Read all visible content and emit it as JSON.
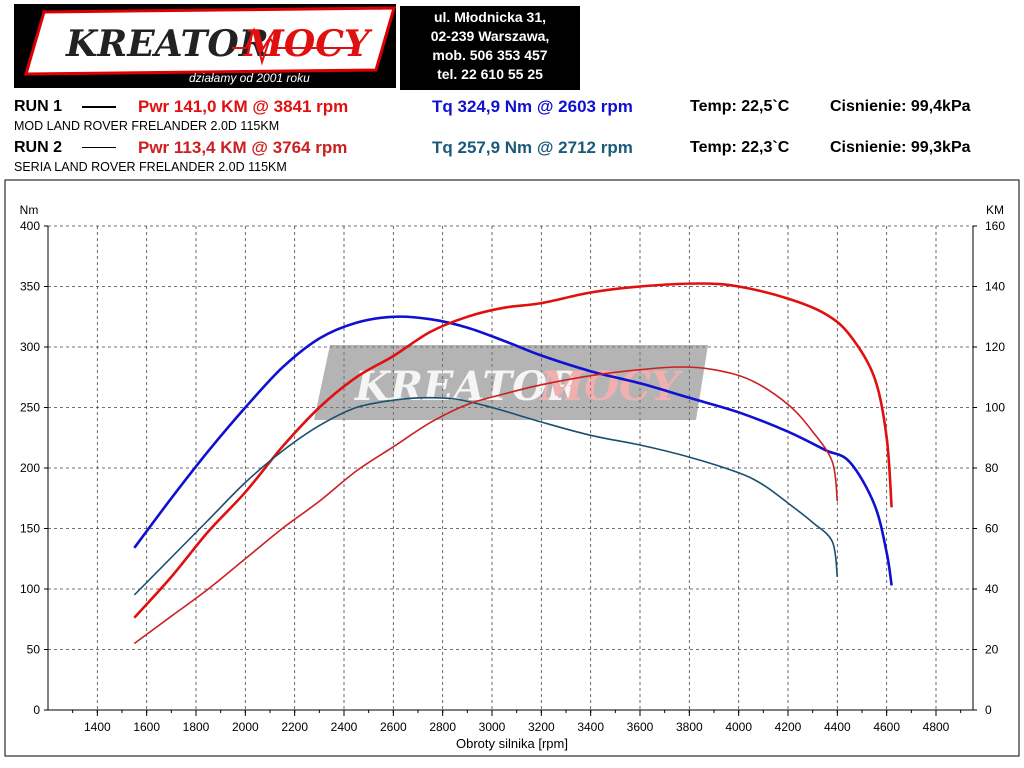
{
  "header": {
    "logo_text_1": "KREATOR",
    "logo_text_2": "MOCY",
    "logo_tagline": "działamy od 2001 roku",
    "address_lines": [
      "ul. Młodnicka 31,",
      "02-239  Warszawa,",
      "mob.  506 353 457",
      "tel.  22 610 55 25"
    ]
  },
  "runs": [
    {
      "label": "RUN 1",
      "pwr": "Pwr  141,0 KM @ 3841 rpm",
      "tq": "Tq 324,9 Nm @ 2603 rpm",
      "temp": "Temp: 22,5`C",
      "pressure": "Cisnienie: 99,4kPa",
      "vehicle": "MOD LAND ROVER FRELANDER 2.0D 115KM"
    },
    {
      "label": "RUN 2",
      "pwr": "Pwr  113,4 KM @ 3764 rpm",
      "tq": "Tq 257,9 Nm @ 2712 rpm",
      "temp": "Temp: 22,3`C",
      "pressure": "Cisnienie: 99,3kPa",
      "vehicle": "SERIA LAND ROVER FRELANDER 2.0D 115KM"
    }
  ],
  "colors": {
    "pwr_run1": "#e01010",
    "tq_run1": "#1010d0",
    "pwr_run2": "#cc2020",
    "tq_run2": "#1a4f6e",
    "tq_header_run2": "#1a5a7a"
  },
  "chart_data": {
    "type": "line",
    "xlabel": "Obroty silnika [rpm]",
    "ylabel_left": "Nm",
    "ylabel_right": "KM",
    "xlim": [
      1200,
      4950
    ],
    "ylim_left": [
      0,
      400
    ],
    "ylim_right": [
      0,
      160
    ],
    "x_ticks": [
      1400,
      1600,
      1800,
      2000,
      2200,
      2400,
      2600,
      2800,
      3000,
      3200,
      3400,
      3600,
      3800,
      4000,
      4200,
      4400,
      4600,
      4800
    ],
    "y_ticks_left": [
      0,
      50,
      100,
      150,
      200,
      250,
      300,
      350,
      400
    ],
    "y_ticks_right": [
      0,
      20,
      40,
      60,
      80,
      100,
      120,
      140,
      160
    ],
    "grid": true,
    "series": [
      {
        "name": "RUN 1 Tq",
        "axis": "left",
        "color_key": "tq_run1",
        "x": [
          1550,
          1700,
          1850,
          2000,
          2150,
          2300,
          2450,
          2600,
          2750,
          2900,
          3050,
          3200,
          3400,
          3600,
          3800,
          4000,
          4200,
          4350,
          4450,
          4550,
          4600,
          4620
        ],
        "y": [
          134,
          175,
          214,
          250,
          283,
          307,
          320,
          325,
          323,
          316,
          305,
          293,
          280,
          270,
          258,
          246,
          230,
          215,
          205,
          170,
          130,
          103
        ]
      },
      {
        "name": "RUN 1 Pwr",
        "axis": "right",
        "color_key": "pwr_run1",
        "x": [
          1550,
          1700,
          1850,
          2000,
          2150,
          2300,
          2450,
          2600,
          2750,
          2900,
          3050,
          3200,
          3400,
          3600,
          3841,
          4000,
          4200,
          4350,
          4450,
          4550,
          4600,
          4620
        ],
        "y": [
          30.5,
          44,
          59,
          72,
          87,
          100,
          110,
          117,
          125,
          130,
          133,
          134.5,
          138,
          140,
          141,
          140,
          136,
          131,
          124,
          110,
          90,
          67
        ]
      },
      {
        "name": "RUN 2 Tq",
        "axis": "left",
        "color_key": "tq_run2",
        "x": [
          1550,
          1700,
          1850,
          2000,
          2150,
          2300,
          2450,
          2600,
          2712,
          2850,
          3000,
          3200,
          3400,
          3600,
          3800,
          4000,
          4100,
          4200,
          4300,
          4380,
          4400
        ],
        "y": [
          95,
          126,
          157,
          188,
          214,
          235,
          250,
          256,
          258,
          257,
          250,
          238,
          227,
          219,
          209,
          196,
          186,
          171,
          155,
          139,
          110
        ]
      },
      {
        "name": "RUN 2 Pwr",
        "axis": "right",
        "color_key": "pwr_run2",
        "x": [
          1550,
          1700,
          1850,
          2000,
          2150,
          2300,
          2450,
          2600,
          2750,
          2900,
          3050,
          3200,
          3400,
          3600,
          3764,
          3900,
          4050,
          4200,
          4300,
          4380,
          4400
        ],
        "y": [
          22,
          31,
          40,
          50,
          60,
          69,
          79,
          87,
          95,
          101,
          104.5,
          107.5,
          110.5,
          112.5,
          113.4,
          112.5,
          109,
          101,
          92,
          82,
          69
        ]
      }
    ]
  }
}
